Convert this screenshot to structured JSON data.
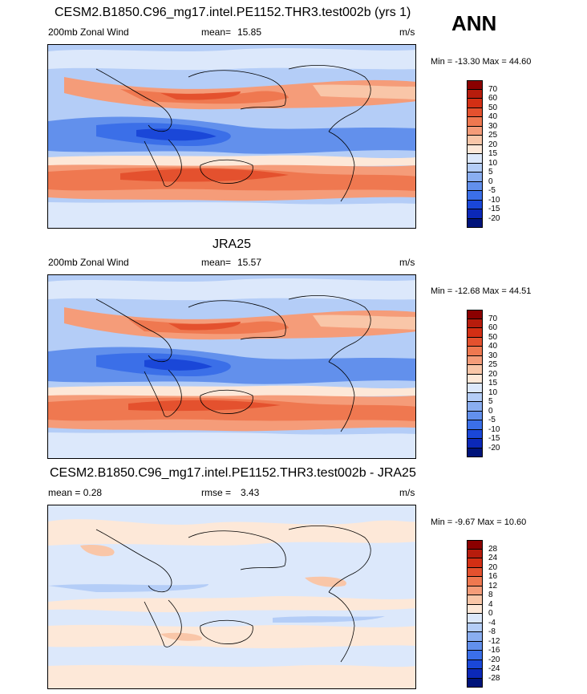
{
  "header": {
    "season": "ANN"
  },
  "panels": [
    {
      "title": "CESM2.B1850.C96_mg17.intel.PE1152.THR3.test002b (yrs 1)",
      "left_label": "200mb Zonal Wind",
      "stat_label": "mean=",
      "stat_value": "15.85",
      "units": "m/s",
      "minmax": "Min = -13.30 Max =  44.60",
      "map_name": "model-map"
    },
    {
      "title": "JRA25",
      "left_label": "200mb Zonal Wind",
      "stat_label": "mean=",
      "stat_value": "15.57",
      "units": "m/s",
      "minmax": "Min = -12.68 Max = 44.51",
      "map_name": "obs-map"
    },
    {
      "title": "CESM2.B1850.C96_mg17.intel.PE1152.THR3.test002b - JRA25",
      "left_label": "mean =    0.28",
      "stat_label": "rmse =",
      "stat_value": "3.43",
      "units": "m/s",
      "minmax": "Min =  -9.67 Max =  10.60",
      "map_name": "diff-map"
    }
  ],
  "colorbars": [
    {
      "labels": [
        "70",
        "60",
        "50",
        "40",
        "30",
        "25",
        "20",
        "15",
        "10",
        "5",
        "0",
        "-5",
        "-10",
        "-15",
        "-20"
      ],
      "colors": [
        "#8b0000",
        "#b71c0c",
        "#d32f14",
        "#e4512e",
        "#ef7850",
        "#f59c79",
        "#f9c6a8",
        "#fde8d8",
        "#dce8fb",
        "#b4cdf7",
        "#8aaef0",
        "#6290ec",
        "#3b6fe8",
        "#1a47d8",
        "#0b28b8",
        "#00137a"
      ]
    },
    {
      "labels": [
        "70",
        "60",
        "50",
        "40",
        "30",
        "25",
        "20",
        "15",
        "10",
        "5",
        "0",
        "-5",
        "-10",
        "-15",
        "-20"
      ],
      "colors": [
        "#8b0000",
        "#b71c0c",
        "#d32f14",
        "#e4512e",
        "#ef7850",
        "#f59c79",
        "#f9c6a8",
        "#fde8d8",
        "#dce8fb",
        "#b4cdf7",
        "#8aaef0",
        "#6290ec",
        "#3b6fe8",
        "#1a47d8",
        "#0b28b8",
        "#00137a"
      ]
    },
    {
      "labels": [
        "28",
        "24",
        "20",
        "16",
        "12",
        "8",
        "4",
        "0",
        "-4",
        "-8",
        "-12",
        "-16",
        "-20",
        "-24",
        "-28"
      ],
      "colors": [
        "#8b0000",
        "#b71c0c",
        "#d32f14",
        "#e4512e",
        "#ef7850",
        "#f59c79",
        "#f9c6a8",
        "#fde8d8",
        "#dce8fb",
        "#b4cdf7",
        "#8aaef0",
        "#6290ec",
        "#3b6fe8",
        "#1a47d8",
        "#0b28b8",
        "#00137a"
      ]
    }
  ]
}
